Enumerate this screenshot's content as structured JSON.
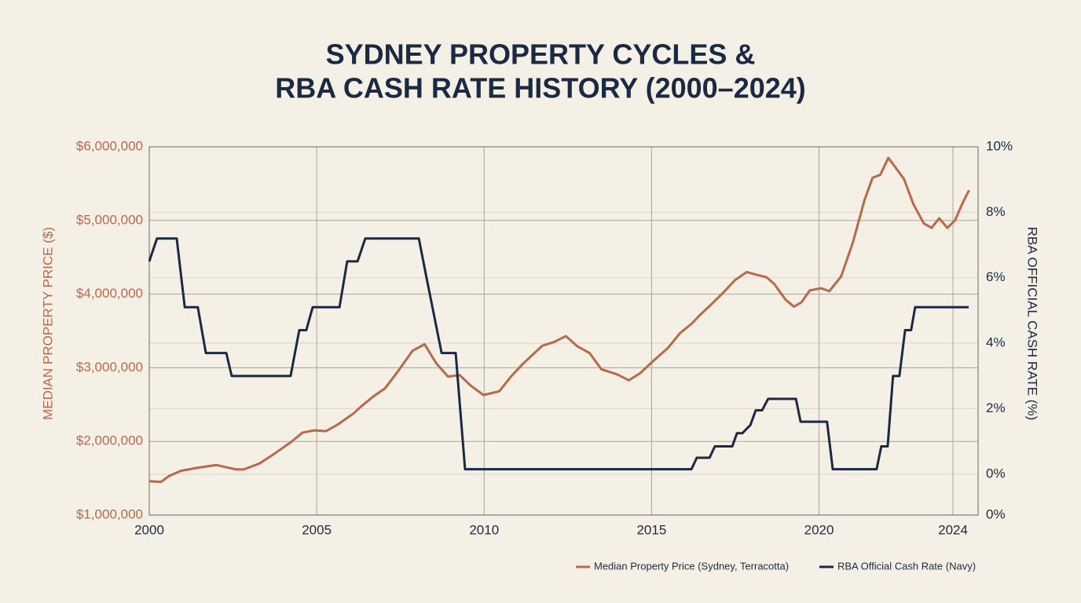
{
  "chart_data": {
    "type": "line",
    "title": [
      "SYDNEY PROPERTY CYCLES &",
      "RBA CASH RATE HISTORY (2000–2024)"
    ],
    "ylabel": "MEDIAN PROPERTY PRICE ($)",
    "y2label": "RBA OFFICIAL CASH RATE (%)",
    "xlim": [
      2000,
      2024.75
    ],
    "xticks": [
      2000,
      2005,
      2010,
      2015,
      2020,
      2024
    ],
    "ylim": [
      1000000,
      6000000
    ],
    "yticks": [
      {
        "value": 1000000,
        "label": "$1,000,000"
      },
      {
        "value": 2000000,
        "label": "$2,000,000"
      },
      {
        "value": 3000000,
        "label": "$3,000,000"
      },
      {
        "value": 4000000,
        "label": "$4,000,000"
      },
      {
        "value": 5000000,
        "label": "$5,000,000"
      },
      {
        "value": 6000000,
        "label": "$6,000,000"
      }
    ],
    "y2lim": [
      -1.25,
      10
    ],
    "y2ticks": [
      {
        "value": 0,
        "label": "0%"
      },
      {
        "value": 2,
        "label": "2%"
      },
      {
        "value": 4,
        "label": "4%"
      },
      {
        "value": 6,
        "label": "6%"
      },
      {
        "value": 8,
        "label": "8%"
      },
      {
        "value": 10,
        "label": "10%"
      }
    ],
    "y2_floor_label": "0%",
    "grid": true,
    "legend": "bottom-right",
    "series": [
      {
        "name": "Median Property Price (Sydney, Terracotta)",
        "color": "#b9684a",
        "x": [
          2000,
          2000.35,
          2000.59,
          2000.94,
          2001.41,
          2002.0,
          2002.58,
          2002.82,
          2003.29,
          2003.76,
          2004.23,
          2004.58,
          2004.93,
          2005.28,
          2005.63,
          2006.1,
          2006.34,
          2006.69,
          2007.04,
          2007.39,
          2007.86,
          2008.22,
          2008.57,
          2008.92,
          2009.27,
          2009.62,
          2009.98,
          2010.45,
          2010.8,
          2011.15,
          2011.74,
          2012.09,
          2012.44,
          2012.79,
          2013.15,
          2013.5,
          2013.97,
          2014.32,
          2014.67,
          2015.02,
          2015.49,
          2015.85,
          2016.2,
          2016.43,
          2016.78,
          2017.14,
          2017.49,
          2017.84,
          2018.08,
          2018.43,
          2018.66,
          2019.01,
          2019.25,
          2019.48,
          2019.72,
          2020.07,
          2020.31,
          2020.66,
          2021.01,
          2021.36,
          2021.6,
          2021.83,
          2022.07,
          2022.3,
          2022.54,
          2022.82,
          2023.13,
          2023.36,
          2023.59,
          2023.83,
          2024.06,
          2024.3,
          2024.48
        ],
        "values": [
          1460000,
          1450000,
          1530000,
          1600000,
          1640000,
          1680000,
          1620000,
          1620000,
          1700000,
          1840000,
          1990000,
          2120000,
          2150000,
          2140000,
          2230000,
          2380000,
          2480000,
          2610000,
          2720000,
          2930000,
          3230000,
          3320000,
          3060000,
          2880000,
          2900000,
          2750000,
          2630000,
          2680000,
          2880000,
          3050000,
          3300000,
          3350000,
          3430000,
          3290000,
          3200000,
          2980000,
          2910000,
          2830000,
          2930000,
          3080000,
          3270000,
          3470000,
          3600000,
          3710000,
          3860000,
          4020000,
          4190000,
          4300000,
          4270000,
          4230000,
          4140000,
          3920000,
          3830000,
          3890000,
          4050000,
          4080000,
          4040000,
          4240000,
          4700000,
          5280000,
          5580000,
          5620000,
          5850000,
          5710000,
          5560000,
          5220000,
          4960000,
          4900000,
          5030000,
          4900000,
          5000000,
          5250000,
          5410000
        ]
      },
      {
        "name": "RBA Official Cash Rate (Navy)",
        "color": "#1b2a44",
        "axis": "y2",
        "x": [
          2000,
          2000.23,
          2000.82,
          2001.06,
          2001.45,
          2001.69,
          2002.3,
          2002.46,
          2004.22,
          2004.48,
          2004.69,
          2004.88,
          2005.68,
          2005.91,
          2006.22,
          2006.45,
          2008.05,
          2008.26,
          2008.73,
          2009.15,
          2009.43,
          2016.19,
          2016.35,
          2016.73,
          2016.89,
          2017.41,
          2017.55,
          2017.71,
          2017.95,
          2018.11,
          2018.3,
          2018.48,
          2019.31,
          2019.45,
          2020.24,
          2020.41,
          2021.72,
          2021.86,
          2022.05,
          2022.21,
          2022.4,
          2022.57,
          2022.75,
          2022.87,
          2024.47
        ],
        "values": [
          6.5,
          7.2,
          7.2,
          5.1,
          5.1,
          3.7,
          3.7,
          3.0,
          3.0,
          4.4,
          4.4,
          5.1,
          5.1,
          6.5,
          6.5,
          7.2,
          7.2,
          6.1,
          3.7,
          3.7,
          0.15,
          0.15,
          0.5,
          0.5,
          0.85,
          0.85,
          1.25,
          1.25,
          1.5,
          1.95,
          1.95,
          2.3,
          2.3,
          1.6,
          1.6,
          0.15,
          0.15,
          0.85,
          0.85,
          3.0,
          3.0,
          4.4,
          4.4,
          5.1,
          5.1
        ]
      }
    ]
  }
}
